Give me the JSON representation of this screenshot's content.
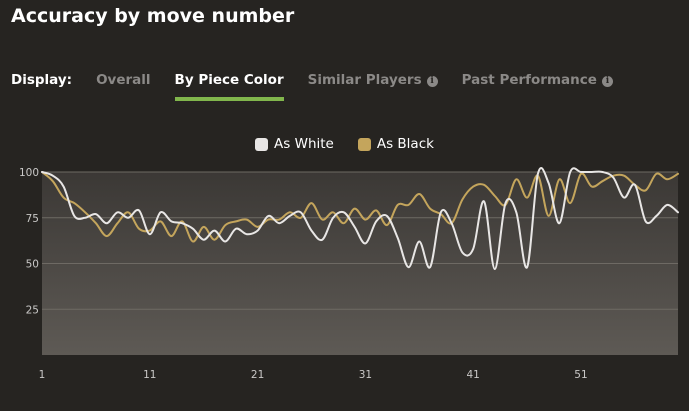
{
  "title": "Accuracy by move number",
  "tabs": {
    "display_label": "Display:",
    "items": [
      "Overall",
      "By Piece Color",
      "Similar Players",
      "Past Performance"
    ],
    "active": "By Piece Color"
  },
  "colors": {
    "white": "#e8e6e5",
    "black": "#c4a55c",
    "accent": "#81b64c"
  },
  "chart_data": {
    "type": "line",
    "title": "Accuracy by move number",
    "xlabel": "",
    "ylabel": "",
    "xlim": [
      1,
      60
    ],
    "ylim": [
      0,
      100
    ],
    "xticks": [
      1,
      11,
      21,
      31,
      41,
      51
    ],
    "yticks": [
      25,
      50,
      75,
      100
    ],
    "grid": true,
    "legend": "top-center",
    "series": [
      {
        "name": "As White",
        "color": "#e8e6e5",
        "x": [
          1,
          2,
          3,
          4,
          5,
          6,
          7,
          8,
          9,
          10,
          11,
          12,
          13,
          14,
          15,
          16,
          17,
          18,
          19,
          20,
          21,
          22,
          23,
          24,
          25,
          26,
          27,
          28,
          29,
          30,
          31,
          32,
          33,
          34,
          35,
          36,
          37,
          38,
          39,
          40,
          41,
          42,
          43,
          44,
          45,
          46,
          47,
          48,
          49,
          50,
          51,
          52,
          53,
          54,
          55,
          56,
          57,
          58,
          59,
          60
        ],
        "values": [
          100,
          98,
          92,
          76,
          75,
          77,
          72,
          78,
          75,
          79,
          66,
          78,
          73,
          72,
          69,
          63,
          68,
          62,
          69,
          66,
          68,
          76,
          72,
          76,
          78,
          68,
          63,
          75,
          78,
          70,
          61,
          73,
          76,
          64,
          48,
          62,
          48,
          78,
          72,
          56,
          58,
          84,
          47,
          83,
          78,
          48,
          99,
          94,
          72,
          100,
          100,
          100,
          100,
          97,
          86,
          93,
          73,
          76,
          82,
          78
        ]
      },
      {
        "name": "As Black",
        "color": "#c4a55c",
        "x": [
          1,
          2,
          3,
          4,
          5,
          6,
          7,
          8,
          9,
          10,
          11,
          12,
          13,
          14,
          15,
          16,
          17,
          18,
          19,
          20,
          21,
          22,
          23,
          24,
          25,
          26,
          27,
          28,
          29,
          30,
          31,
          32,
          33,
          34,
          35,
          36,
          37,
          38,
          39,
          40,
          41,
          42,
          43,
          44,
          45,
          46,
          47,
          48,
          49,
          50,
          51,
          52,
          53,
          54,
          55,
          56,
          57,
          58,
          59,
          60
        ],
        "values": [
          100,
          95,
          86,
          83,
          78,
          72,
          65,
          72,
          78,
          69,
          68,
          73,
          65,
          73,
          62,
          70,
          63,
          71,
          73,
          74,
          70,
          74,
          74,
          78,
          75,
          83,
          74,
          78,
          72,
          80,
          74,
          79,
          71,
          82,
          82,
          88,
          80,
          77,
          72,
          85,
          92,
          93,
          87,
          82,
          96,
          86,
          98,
          76,
          96,
          83,
          99,
          92,
          95,
          98,
          98,
          93,
          90,
          99,
          96,
          99
        ]
      }
    ]
  }
}
